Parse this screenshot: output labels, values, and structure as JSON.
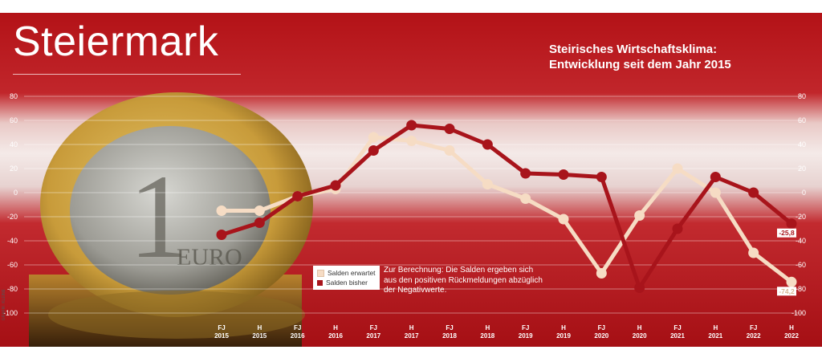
{
  "brand": {
    "title": "Steiermark"
  },
  "header": {
    "subtitle_line1": "Steirisches Wirtschaftsklima:",
    "subtitle_line2": "Entwicklung seit dem Jahr 2015"
  },
  "note": "Zur Berechnung: Die Salden ergeben sich aus den positiven Rückmeldungen abzüglich der Negativwerte.",
  "credit": "GRAFIK: KLEINE",
  "colors": {
    "erwartet": "#f6dcc4",
    "bisher": "#a8141b",
    "band_red": "#b4161c",
    "band_white": "#f2e4e1"
  },
  "chart_data": {
    "type": "line",
    "ylim": [
      -100,
      80
    ],
    "yticks": [
      80,
      60,
      40,
      20,
      0,
      -20,
      -40,
      -60,
      -80,
      -100
    ],
    "categories": [
      [
        "FJ",
        "2015"
      ],
      [
        "H",
        "2015"
      ],
      [
        "FJ",
        "2016"
      ],
      [
        "H",
        "2016"
      ],
      [
        "FJ",
        "2017"
      ],
      [
        "H",
        "2017"
      ],
      [
        "FJ",
        "2018"
      ],
      [
        "H",
        "2018"
      ],
      [
        "FJ",
        "2019"
      ],
      [
        "H",
        "2019"
      ],
      [
        "FJ",
        "2020"
      ],
      [
        "H",
        "2020"
      ],
      [
        "FJ",
        "2021"
      ],
      [
        "H",
        "2021"
      ],
      [
        "FJ",
        "2022"
      ],
      [
        "H",
        "2022"
      ]
    ],
    "series": [
      {
        "name": "Salden erwartet",
        "color": "#f6dcc4",
        "values": [
          -15,
          -15,
          -3,
          3,
          46,
          43,
          35,
          7,
          -5,
          -22,
          -67,
          -19,
          20,
          0,
          -50,
          -74.2
        ],
        "end_label": "-74,2"
      },
      {
        "name": "Salden bisher",
        "color": "#a8141b",
        "values": [
          -35,
          -25,
          -3,
          6,
          35,
          56,
          53,
          40,
          16,
          15,
          13,
          -79,
          -30,
          13,
          0,
          -25.8
        ],
        "end_label": "-25,8"
      }
    ]
  }
}
